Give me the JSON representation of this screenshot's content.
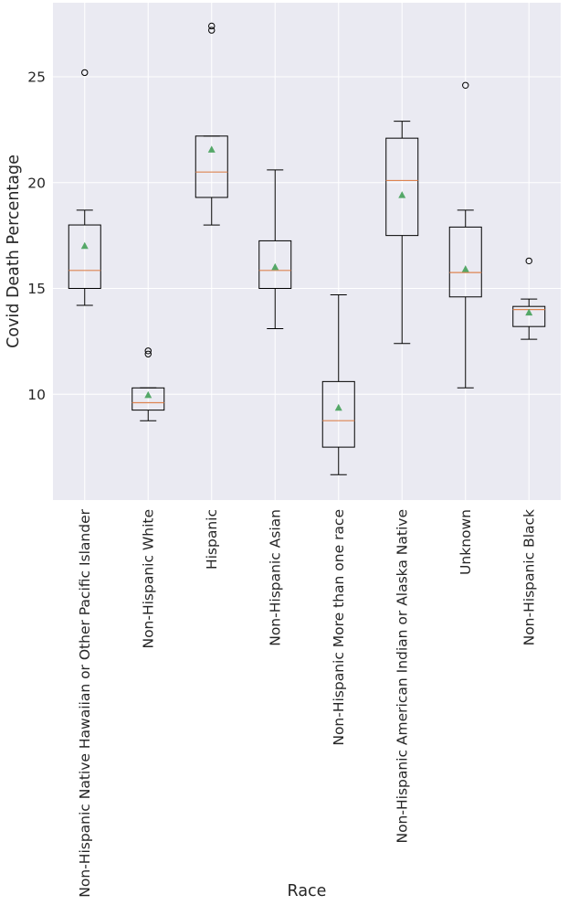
{
  "chart_data": {
    "type": "boxplot",
    "title": "",
    "xlabel": "Race",
    "ylabel": "Covid Death Percentage",
    "ylim": [
      5,
      28.5
    ],
    "yticks": [
      10,
      15,
      20,
      25
    ],
    "grid": true,
    "categories": [
      "Non-Hispanic Native Hawaiian or Other Pacific Islander",
      "Non-Hispanic White",
      "Hispanic",
      "Non-Hispanic Asian",
      "Non-Hispanic More than one race",
      "Non-Hispanic American Indian or Alaska Native",
      "Unknown",
      "Non-Hispanic Black"
    ],
    "boxes": [
      {
        "whisker_low": 14.2,
        "q1": 15.0,
        "median": 15.85,
        "q3": 18.0,
        "whisker_high": 18.7,
        "mean": 17.0,
        "outliers": [
          25.2
        ]
      },
      {
        "whisker_low": 8.75,
        "q1": 9.25,
        "median": 9.6,
        "q3": 10.3,
        "whisker_high": 10.3,
        "mean": 9.95,
        "outliers": [
          11.9,
          12.05
        ]
      },
      {
        "whisker_low": 18.0,
        "q1": 19.3,
        "median": 20.5,
        "q3": 22.2,
        "whisker_high": 22.2,
        "mean": 21.55,
        "outliers": [
          27.2,
          27.4
        ]
      },
      {
        "whisker_low": 13.1,
        "q1": 15.0,
        "median": 15.85,
        "q3": 17.25,
        "whisker_high": 20.6,
        "mean": 16.0,
        "outliers": []
      },
      {
        "whisker_low": 6.2,
        "q1": 7.5,
        "median": 8.75,
        "q3": 10.6,
        "whisker_high": 14.7,
        "mean": 9.35,
        "outliers": []
      },
      {
        "whisker_low": 12.4,
        "q1": 17.5,
        "median": 20.1,
        "q3": 22.1,
        "whisker_high": 22.9,
        "mean": 19.4,
        "outliers": []
      },
      {
        "whisker_low": 10.3,
        "q1": 14.6,
        "median": 15.75,
        "q3": 17.9,
        "whisker_high": 18.7,
        "mean": 15.9,
        "outliers": [
          24.6
        ]
      },
      {
        "whisker_low": 12.6,
        "q1": 13.2,
        "median": 14.0,
        "q3": 14.15,
        "whisker_high": 14.5,
        "mean": 13.85,
        "outliers": [
          16.3
        ]
      }
    ],
    "colors": {
      "background": "#eaeaf2",
      "grid": "#ffffff",
      "box": "#000000",
      "median": "#dd8452",
      "mean_marker": "#55a868",
      "text": "#262626"
    }
  }
}
